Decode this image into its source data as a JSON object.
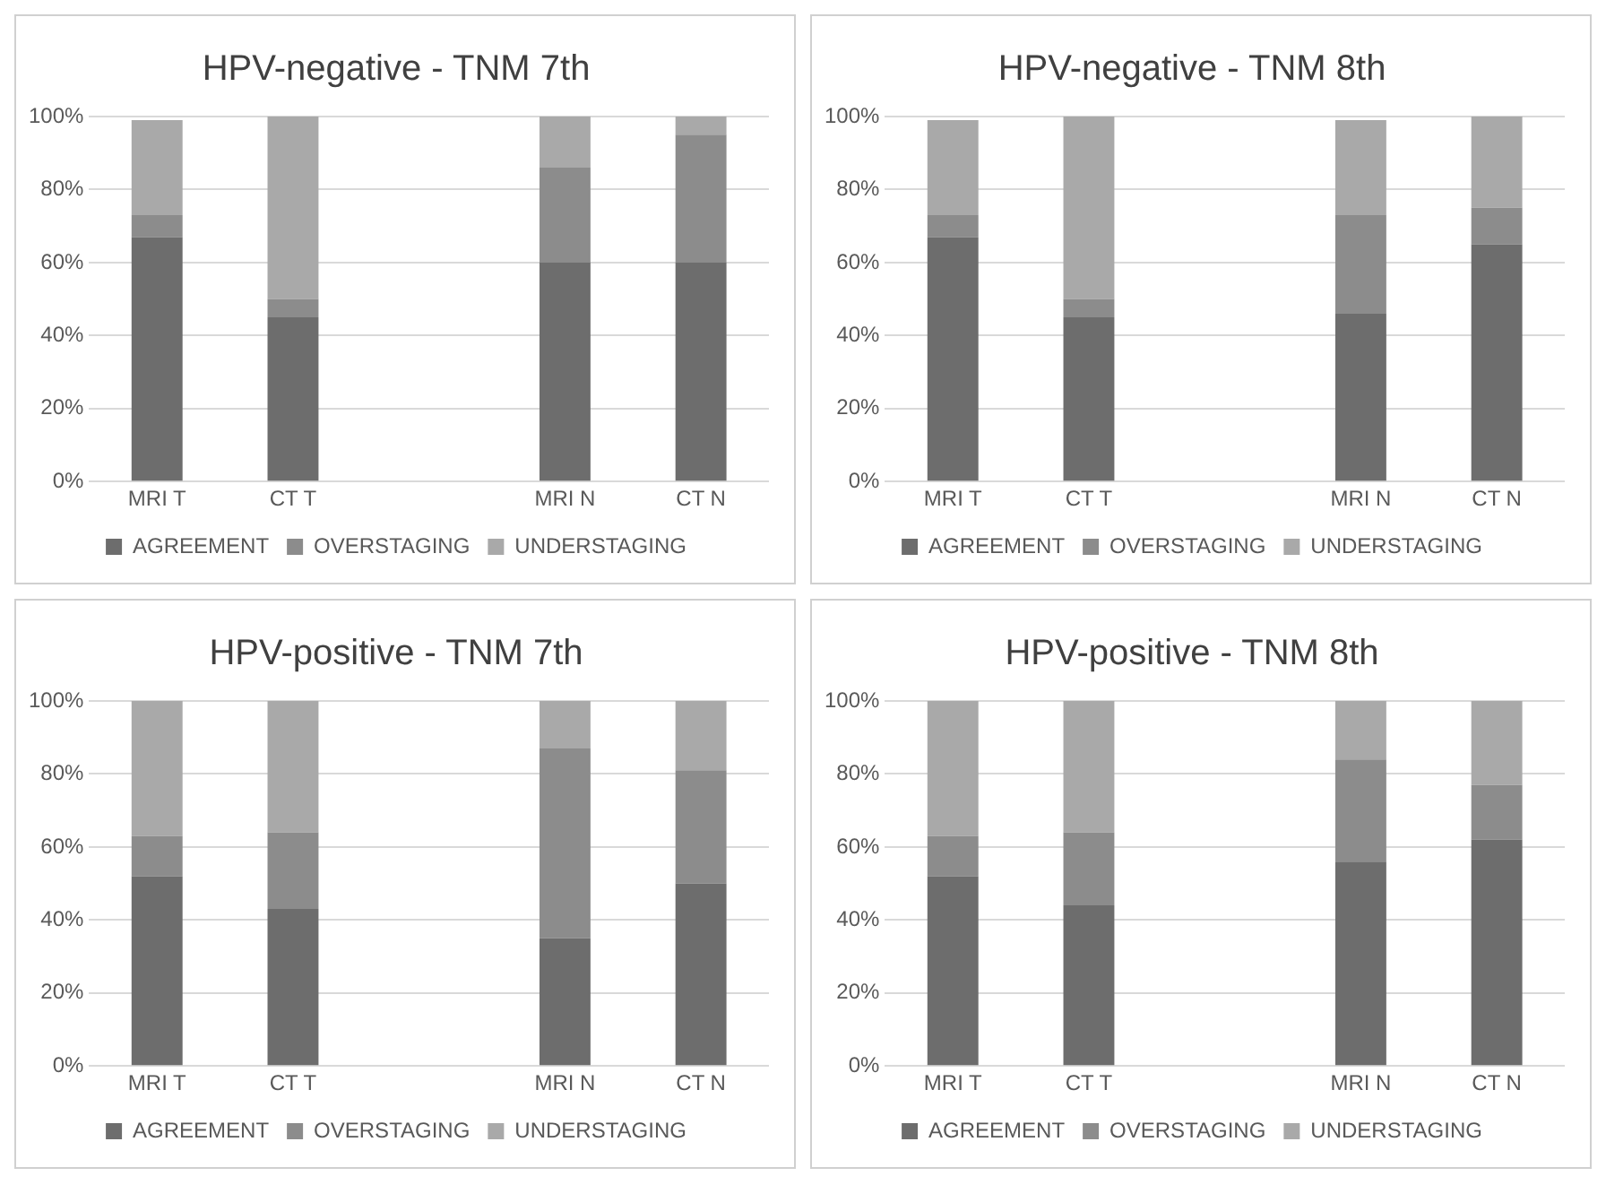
{
  "chart_data": [
    {
      "type": "bar",
      "title": "HPV-negative - TNM 7th",
      "categories": [
        "MRI T",
        "CT T",
        null,
        "MRI N",
        "CT N"
      ],
      "stacked": true,
      "ylim": [
        0,
        100
      ],
      "yticks": [
        {
          "value": 0,
          "label": "0%"
        },
        {
          "value": 20,
          "label": "20%"
        },
        {
          "value": 40,
          "label": "40%"
        },
        {
          "value": 60,
          "label": "60%"
        },
        {
          "value": 80,
          "label": "80%"
        },
        {
          "value": 100,
          "label": "100%"
        }
      ],
      "grid": "y",
      "legend": "bottom",
      "series": [
        {
          "name": "AGREEMENT",
          "color": "#6d6d6d",
          "values": [
            67,
            45,
            null,
            60,
            60
          ]
        },
        {
          "name": "OVERSTAGING",
          "color": "#8c8c8c",
          "values": [
            6,
            5,
            null,
            26,
            35
          ]
        },
        {
          "name": "UNDERSTAGING",
          "color": "#a9a9a9",
          "values": [
            26,
            50,
            null,
            14,
            5
          ]
        }
      ]
    },
    {
      "type": "bar",
      "title": "HPV-negative - TNM 8th",
      "categories": [
        "MRI T",
        "CT T",
        null,
        "MRI N",
        "CT N"
      ],
      "stacked": true,
      "ylim": [
        0,
        100
      ],
      "yticks": [
        {
          "value": 0,
          "label": "0%"
        },
        {
          "value": 20,
          "label": "20%"
        },
        {
          "value": 40,
          "label": "40%"
        },
        {
          "value": 60,
          "label": "60%"
        },
        {
          "value": 80,
          "label": "80%"
        },
        {
          "value": 100,
          "label": "100%"
        }
      ],
      "grid": "y",
      "legend": "bottom",
      "series": [
        {
          "name": "AGREEMENT",
          "color": "#6d6d6d",
          "values": [
            67,
            45,
            null,
            46,
            65
          ]
        },
        {
          "name": "OVERSTAGING",
          "color": "#8c8c8c",
          "values": [
            6,
            5,
            null,
            27,
            10
          ]
        },
        {
          "name": "UNDERSTAGING",
          "color": "#a9a9a9",
          "values": [
            26,
            50,
            null,
            26,
            25
          ]
        }
      ]
    },
    {
      "type": "bar",
      "title": "HPV-positive - TNM 7th",
      "categories": [
        "MRI T",
        "CT T",
        null,
        "MRI N",
        "CT N"
      ],
      "stacked": true,
      "ylim": [
        0,
        100
      ],
      "yticks": [
        {
          "value": 0,
          "label": "0%"
        },
        {
          "value": 20,
          "label": "20%"
        },
        {
          "value": 40,
          "label": "40%"
        },
        {
          "value": 60,
          "label": "60%"
        },
        {
          "value": 80,
          "label": "80%"
        },
        {
          "value": 100,
          "label": "100%"
        }
      ],
      "grid": "y",
      "legend": "bottom",
      "series": [
        {
          "name": "AGREEMENT",
          "color": "#6d6d6d",
          "values": [
            52,
            43,
            null,
            35,
            50
          ]
        },
        {
          "name": "OVERSTAGING",
          "color": "#8c8c8c",
          "values": [
            11,
            21,
            null,
            52,
            31
          ]
        },
        {
          "name": "UNDERSTAGING",
          "color": "#a9a9a9",
          "values": [
            37,
            36,
            null,
            13,
            19
          ]
        }
      ]
    },
    {
      "type": "bar",
      "title": "HPV-positive - TNM 8th",
      "categories": [
        "MRI T",
        "CT T",
        null,
        "MRI N",
        "CT N"
      ],
      "stacked": true,
      "ylim": [
        0,
        100
      ],
      "yticks": [
        {
          "value": 0,
          "label": "0%"
        },
        {
          "value": 20,
          "label": "20%"
        },
        {
          "value": 40,
          "label": "40%"
        },
        {
          "value": 60,
          "label": "60%"
        },
        {
          "value": 80,
          "label": "80%"
        },
        {
          "value": 100,
          "label": "100%"
        }
      ],
      "grid": "y",
      "legend": "bottom",
      "series": [
        {
          "name": "AGREEMENT",
          "color": "#6d6d6d",
          "values": [
            52,
            44,
            null,
            56,
            62
          ]
        },
        {
          "name": "OVERSTAGING",
          "color": "#8c8c8c",
          "values": [
            11,
            20,
            null,
            28,
            15
          ]
        },
        {
          "name": "UNDERSTAGING",
          "color": "#a9a9a9",
          "values": [
            37,
            36,
            null,
            16,
            23
          ]
        }
      ]
    }
  ]
}
